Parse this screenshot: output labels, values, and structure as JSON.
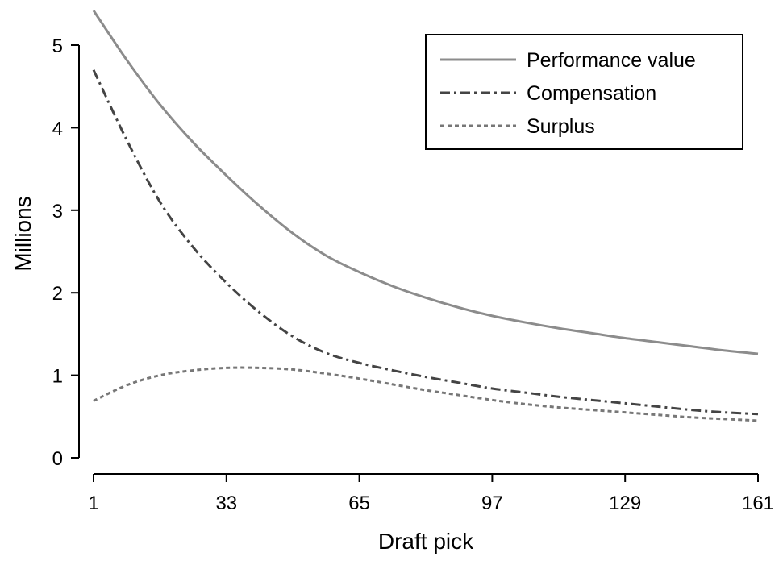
{
  "chart_data": {
    "type": "line",
    "xlabel": "Draft pick",
    "ylabel": "Millions",
    "xlim": [
      1,
      161
    ],
    "ylim": [
      0,
      5.4
    ],
    "xticks": [
      1,
      33,
      65,
      97,
      129,
      161
    ],
    "yticks": [
      0,
      1,
      2,
      3,
      4,
      5
    ],
    "grid": false,
    "legend_position": "top-right",
    "x": [
      1,
      9,
      17,
      25,
      33,
      41,
      49,
      57,
      65,
      73,
      81,
      89,
      97,
      105,
      113,
      121,
      129,
      137,
      145,
      153,
      161
    ],
    "series": [
      {
        "name": "Performance value",
        "color": "#8c8c8c",
        "style": "solid",
        "values": [
          5.42,
          4.82,
          4.28,
          3.82,
          3.42,
          3.05,
          2.72,
          2.45,
          2.25,
          2.08,
          1.94,
          1.82,
          1.72,
          1.64,
          1.57,
          1.51,
          1.45,
          1.4,
          1.35,
          1.3,
          1.26
        ]
      },
      {
        "name": "Compensation",
        "color": "#444444",
        "style": "dashdot",
        "values": [
          4.7,
          3.85,
          3.1,
          2.55,
          2.12,
          1.76,
          1.47,
          1.27,
          1.15,
          1.06,
          0.98,
          0.91,
          0.84,
          0.79,
          0.74,
          0.7,
          0.66,
          0.62,
          0.58,
          0.55,
          0.53
        ]
      },
      {
        "name": "Surplus",
        "color": "#777777",
        "style": "dotted",
        "values": [
          0.69,
          0.88,
          1.0,
          1.06,
          1.09,
          1.09,
          1.07,
          1.02,
          0.96,
          0.89,
          0.82,
          0.76,
          0.7,
          0.65,
          0.61,
          0.58,
          0.55,
          0.52,
          0.49,
          0.47,
          0.45
        ]
      }
    ]
  }
}
